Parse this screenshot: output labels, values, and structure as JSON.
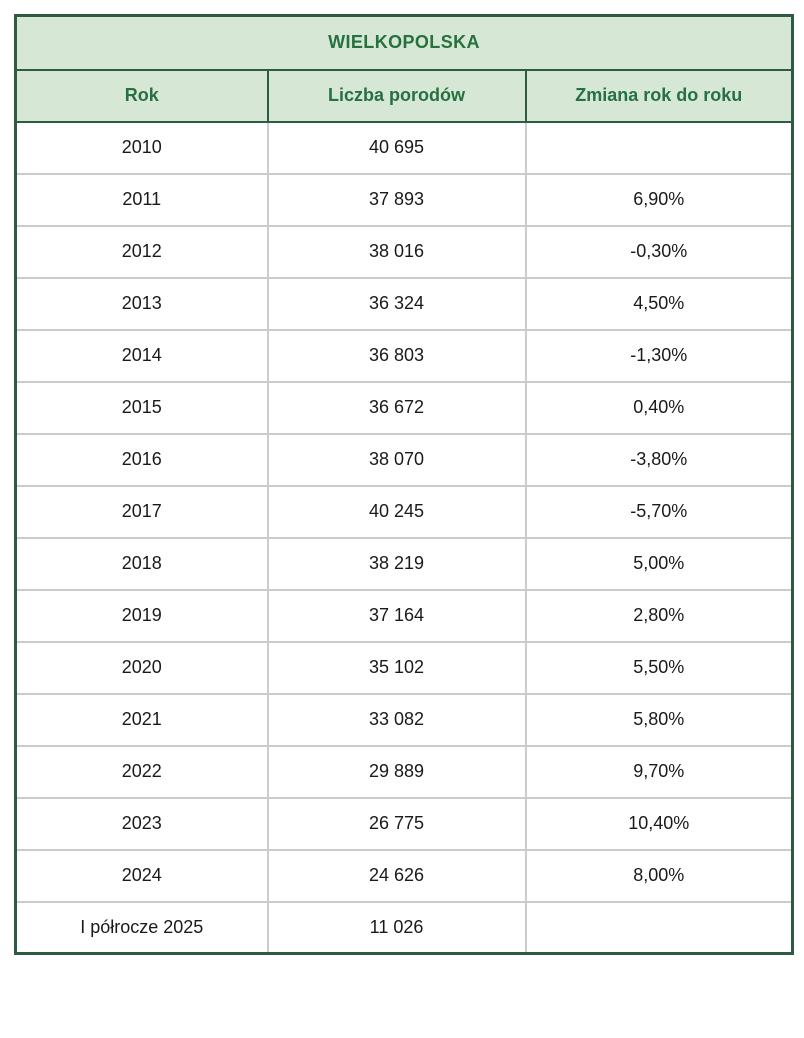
{
  "colors": {
    "header_bg": "#d6e8d5",
    "header_text": "#27703f",
    "border_dark_green": "#2d5c42",
    "border_light_gray": "#cccccc",
    "body_text": "#1a1a1a",
    "page_bg": "#ffffff"
  },
  "chart_data": {
    "type": "table",
    "title": "WIELKOPOLSKA",
    "columns": [
      "Rok",
      "Liczba porodów",
      "Zmiana rok do roku"
    ],
    "rows": [
      [
        "2010",
        "40 695",
        ""
      ],
      [
        "2011",
        "37 893",
        "6,90%"
      ],
      [
        "2012",
        "38 016",
        "-0,30%"
      ],
      [
        "2013",
        "36 324",
        "4,50%"
      ],
      [
        "2014",
        "36 803",
        "-1,30%"
      ],
      [
        "2015",
        "36 672",
        "0,40%"
      ],
      [
        "2016",
        "38 070",
        "-3,80%"
      ],
      [
        "2017",
        "40 245",
        "-5,70%"
      ],
      [
        "2018",
        "38 219",
        "5,00%"
      ],
      [
        "2019",
        "37 164",
        "2,80%"
      ],
      [
        "2020",
        "35 102",
        "5,50%"
      ],
      [
        "2021",
        "33 082",
        "5,80%"
      ],
      [
        "2022",
        "29 889",
        "9,70%"
      ],
      [
        "2023",
        "26 775",
        "10,40%"
      ],
      [
        "2024",
        "24 626",
        "8,00%"
      ],
      [
        "I półrocze 2025",
        "11 026",
        ""
      ]
    ],
    "categories": [
      "2010",
      "2011",
      "2012",
      "2013",
      "2014",
      "2015",
      "2016",
      "2017",
      "2018",
      "2019",
      "2020",
      "2021",
      "2022",
      "2023",
      "2024",
      "I półrocze 2025"
    ],
    "series": [
      {
        "name": "Liczba porodów",
        "values": [
          40695,
          37893,
          38016,
          36324,
          36803,
          36672,
          38070,
          40245,
          38219,
          37164,
          35102,
          33082,
          29889,
          26775,
          24626,
          11026
        ]
      },
      {
        "name": "Zmiana rok do roku (%)",
        "values": [
          null,
          6.9,
          -0.3,
          4.5,
          -1.3,
          0.4,
          -3.8,
          -5.7,
          5.0,
          2.8,
          5.5,
          5.8,
          9.7,
          10.4,
          8.0,
          null
        ]
      }
    ],
    "legend": false,
    "grid": true
  }
}
